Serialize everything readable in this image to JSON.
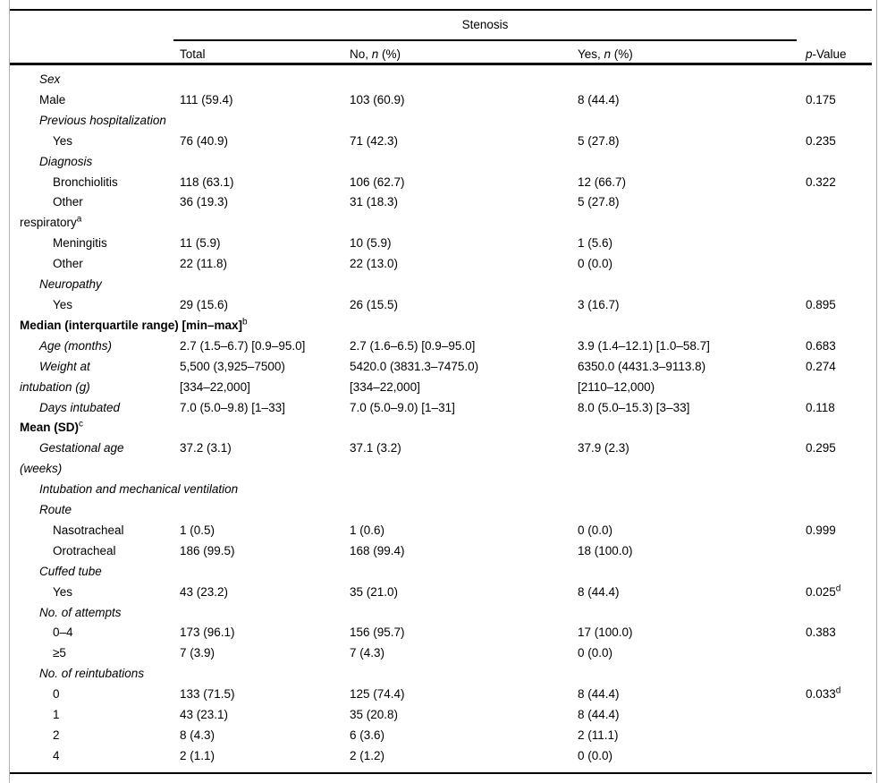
{
  "header": {
    "spanner": "Stenosis",
    "columns": [
      {
        "pre": "Total",
        "it": "",
        "post": ""
      },
      {
        "pre": "No, ",
        "it": "n",
        "post": " (%)"
      },
      {
        "pre": "Yes, ",
        "it": "n",
        "post": " (%)"
      },
      {
        "pre": "",
        "it": "p",
        "post": "-Value"
      }
    ]
  },
  "rows": [
    {
      "label": {
        "style": "italic",
        "lines": [
          {
            "text": "Sex",
            "indent": 1
          }
        ]
      }
    },
    {
      "label": {
        "style": "roman",
        "lines": [
          {
            "text": "Male",
            "indent": 1
          }
        ]
      },
      "total": [
        "111 (59.4)"
      ],
      "no": [
        "103 (60.9)"
      ],
      "yes": [
        "8 (44.4)"
      ],
      "p": {
        "text": "0.175"
      }
    },
    {
      "label": {
        "style": "italic",
        "lines": [
          {
            "text": "Previous hospitalization",
            "indent": 1
          }
        ]
      }
    },
    {
      "label": {
        "style": "roman",
        "lines": [
          {
            "text": "Yes",
            "indent": 2
          }
        ]
      },
      "total": [
        "76 (40.9)"
      ],
      "no": [
        "71 (42.3)"
      ],
      "yes": [
        "5 (27.8)"
      ],
      "p": {
        "text": "0.235"
      }
    },
    {
      "label": {
        "style": "italic",
        "lines": [
          {
            "text": "Diagnosis",
            "indent": 1
          }
        ]
      }
    },
    {
      "label": {
        "style": "roman",
        "lines": [
          {
            "text": "Bronchiolitis",
            "indent": 2
          }
        ]
      },
      "total": [
        "118 (63.1)"
      ],
      "no": [
        "106 (62.7)"
      ],
      "yes": [
        "12 (66.7)"
      ],
      "p": {
        "text": "0.322"
      }
    },
    {
      "label": {
        "style": "roman",
        "lines": [
          {
            "text": "Other",
            "indent": 2
          },
          {
            "text": "respiratory",
            "indent": 0,
            "sup": "a"
          }
        ]
      },
      "total": [
        "36 (19.3)"
      ],
      "no": [
        "31 (18.3)"
      ],
      "yes": [
        "5 (27.8)"
      ]
    },
    {
      "label": {
        "style": "roman",
        "lines": [
          {
            "text": "Meningitis",
            "indent": 2
          }
        ]
      },
      "total": [
        "11 (5.9)"
      ],
      "no": [
        "10 (5.9)"
      ],
      "yes": [
        "1 (5.6)"
      ]
    },
    {
      "label": {
        "style": "roman",
        "lines": [
          {
            "text": "Other",
            "indent": 2
          }
        ]
      },
      "total": [
        "22 (11.8)"
      ],
      "no": [
        "22 (13.0)"
      ],
      "yes": [
        "0 (0.0)"
      ]
    },
    {
      "label": {
        "style": "italic",
        "lines": [
          {
            "text": "Neuropathy",
            "indent": 1
          }
        ]
      }
    },
    {
      "label": {
        "style": "roman",
        "lines": [
          {
            "text": "Yes",
            "indent": 2
          }
        ]
      },
      "total": [
        "29 (15.6)"
      ],
      "no": [
        "26 (15.5)"
      ],
      "yes": [
        "3 (16.7)"
      ],
      "p": {
        "text": "0.895"
      }
    },
    {
      "label": {
        "style": "bold",
        "lines": [
          {
            "text": "Median (interquartile range) [min–max]",
            "indent": 0,
            "sup": "b"
          }
        ]
      }
    },
    {
      "label": {
        "style": "italic",
        "lines": [
          {
            "text": "Age (months)",
            "indent": 1
          }
        ]
      },
      "total": [
        "2.7 (1.5–6.7) [0.9–95.0]"
      ],
      "no": [
        "2.7 (1.6–6.5) [0.9–95.0]"
      ],
      "yes": [
        "3.9 (1.4–12.1) [1.0–58.7]"
      ],
      "p": {
        "text": "0.683"
      }
    },
    {
      "label": {
        "style": "italic",
        "lines": [
          {
            "text": "Weight at",
            "indent": 1
          },
          {
            "text": "intubation (g)",
            "indent": 0
          }
        ]
      },
      "total": [
        "5,500 (3,925–7500)",
        "[334–22,000]"
      ],
      "no": [
        "5420.0 (3831.3–7475.0)",
        "[334–22,000]"
      ],
      "yes": [
        "6350.0 (4431.3–9113.8)",
        "[2110–12,000)"
      ],
      "p": {
        "text": "0.274"
      }
    },
    {
      "label": {
        "style": "italic",
        "lines": [
          {
            "text": "Days intubated",
            "indent": 1
          }
        ]
      },
      "total": [
        "7.0 (5.0–9.8) [1–33]"
      ],
      "no": [
        "7.0 (5.0–9.0) [1–31]"
      ],
      "yes": [
        "8.0 (5.0–15.3) [3–33]"
      ],
      "p": {
        "text": "0.118"
      }
    },
    {
      "label": {
        "style": "bold",
        "lines": [
          {
            "text": "Mean (SD)",
            "indent": 0,
            "sup": "c"
          }
        ]
      }
    },
    {
      "label": {
        "style": "italic",
        "lines": [
          {
            "text": "Gestational age",
            "indent": 1
          },
          {
            "text": "(weeks)",
            "indent": 0
          }
        ]
      },
      "total": [
        "37.2 (3.1)"
      ],
      "no": [
        "37.1 (3.2)"
      ],
      "yes": [
        "37.9 (2.3)"
      ],
      "p": {
        "text": "0.295"
      }
    },
    {
      "label": {
        "style": "italic",
        "lines": [
          {
            "text": "Intubation and mechanical ventilation",
            "indent": 1
          }
        ]
      }
    },
    {
      "label": {
        "style": "italic",
        "lines": [
          {
            "text": "Route",
            "indent": 1
          }
        ]
      }
    },
    {
      "label": {
        "style": "roman",
        "lines": [
          {
            "text": "Nasotracheal",
            "indent": 2
          }
        ]
      },
      "total": [
        "1 (0.5)"
      ],
      "no": [
        "1 (0.6)"
      ],
      "yes": [
        "0 (0.0)"
      ],
      "p": {
        "text": "0.999"
      }
    },
    {
      "label": {
        "style": "roman",
        "lines": [
          {
            "text": "Orotracheal",
            "indent": 2
          }
        ]
      },
      "total": [
        "186 (99.5)"
      ],
      "no": [
        "168 (99.4)"
      ],
      "yes": [
        "18 (100.0)"
      ]
    },
    {
      "label": {
        "style": "italic",
        "lines": [
          {
            "text": "Cuffed tube",
            "indent": 1
          }
        ]
      }
    },
    {
      "label": {
        "style": "roman",
        "lines": [
          {
            "text": "Yes",
            "indent": 2
          }
        ]
      },
      "total": [
        "43 (23.2)"
      ],
      "no": [
        "35 (21.0)"
      ],
      "yes": [
        "8 (44.4)"
      ],
      "p": {
        "text": "0.025",
        "sup": "d"
      }
    },
    {
      "label": {
        "style": "italic",
        "lines": [
          {
            "text": "No. of attempts",
            "indent": 1
          }
        ]
      }
    },
    {
      "label": {
        "style": "roman",
        "lines": [
          {
            "text": "0–4",
            "indent": 2
          }
        ]
      },
      "total": [
        "173 (96.1)"
      ],
      "no": [
        "156 (95.7)"
      ],
      "yes": [
        "17 (100.0)"
      ],
      "p": {
        "text": "0.383"
      }
    },
    {
      "label": {
        "style": "roman",
        "lines": [
          {
            "text": "≥5",
            "indent": 2
          }
        ]
      },
      "total": [
        "7 (3.9)"
      ],
      "no": [
        "7 (4.3)"
      ],
      "yes": [
        "0 (0.0)"
      ]
    },
    {
      "label": {
        "style": "italic",
        "lines": [
          {
            "text": "No. of reintubations",
            "indent": 1
          }
        ]
      }
    },
    {
      "label": {
        "style": "roman",
        "lines": [
          {
            "text": "0",
            "indent": 2
          }
        ]
      },
      "total": [
        "133 (71.5)"
      ],
      "no": [
        "125 (74.4)"
      ],
      "yes": [
        "8 (44.4)"
      ],
      "p": {
        "text": "0.033",
        "sup": "d"
      }
    },
    {
      "label": {
        "style": "roman",
        "lines": [
          {
            "text": "1",
            "indent": 2
          }
        ]
      },
      "total": [
        "43 (23.1)"
      ],
      "no": [
        "35 (20.8)"
      ],
      "yes": [
        "8 (44.4)"
      ]
    },
    {
      "label": {
        "style": "roman",
        "lines": [
          {
            "text": "2",
            "indent": 2
          }
        ]
      },
      "total": [
        "8 (4.3)"
      ],
      "no": [
        "6 (3.6)"
      ],
      "yes": [
        "2 (11.1)"
      ]
    },
    {
      "label": {
        "style": "roman",
        "lines": [
          {
            "text": "4",
            "indent": 2
          }
        ]
      },
      "total": [
        "2 (1.1)"
      ],
      "no": [
        "2 (1.2)"
      ],
      "yes": [
        "0 (0.0)"
      ]
    }
  ],
  "colors": {
    "rule": "#000000",
    "frame_border": "#b0b0b0",
    "background": "#ffffff",
    "text": "#000000"
  }
}
